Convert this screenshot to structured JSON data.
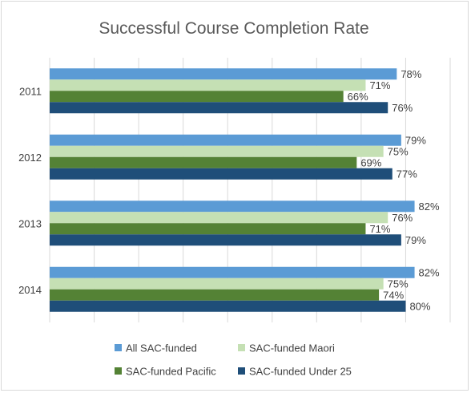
{
  "chart_data": {
    "type": "bar",
    "orientation": "horizontal",
    "title": "Successful Course Completion Rate",
    "xlabel": "",
    "ylabel": "",
    "xlim": [
      0,
      90
    ],
    "grid": "vertical",
    "legend_position": "bottom",
    "value_suffix": "%",
    "categories": [
      "2011",
      "2012",
      "2013",
      "2014"
    ],
    "series": [
      {
        "name": "All SAC-funded",
        "color": "#5b9bd5",
        "values": [
          78,
          79,
          82,
          82
        ]
      },
      {
        "name": "SAC-funded Maori",
        "color": "#c5e0b4",
        "values": [
          71,
          75,
          76,
          75
        ]
      },
      {
        "name": "SAC-funded Pacific",
        "color": "#548235",
        "values": [
          66,
          69,
          71,
          74
        ]
      },
      {
        "name": "SAC-funded Under 25",
        "color": "#1f4e79",
        "values": [
          76,
          77,
          79,
          80
        ]
      }
    ]
  }
}
